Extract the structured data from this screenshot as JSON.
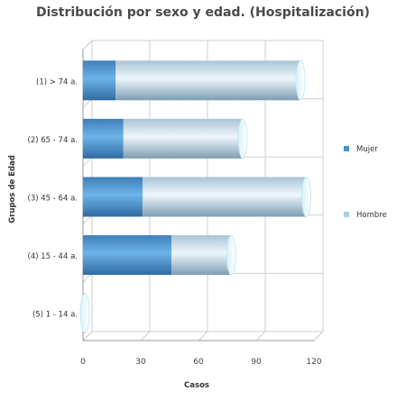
{
  "chart_data": {
    "type": "bar",
    "orientation": "horizontal",
    "stacked": true,
    "title": "Distribución por sexo y edad. (Hospitalización)",
    "xlabel": "Casos",
    "ylabel": "Grupos de Edad",
    "categories": [
      "(1) > 74 a.",
      "(2) 65 - 74 a.",
      "(3) 45 - 64 a.",
      "(4) 15 - 44 a.",
      "(5) 1 - 14 a."
    ],
    "series": [
      {
        "name": "Mujer",
        "color": "#4a90c8",
        "values": [
          17,
          21,
          31,
          46,
          1
        ]
      },
      {
        "name": "Hombre",
        "color": "#a8cfe8",
        "values": [
          96,
          62,
          85,
          31,
          0
        ]
      }
    ],
    "xlim": [
      0,
      120
    ],
    "xticks": [
      0,
      30,
      60,
      90,
      120
    ],
    "grid": true,
    "legend_position": "right"
  }
}
